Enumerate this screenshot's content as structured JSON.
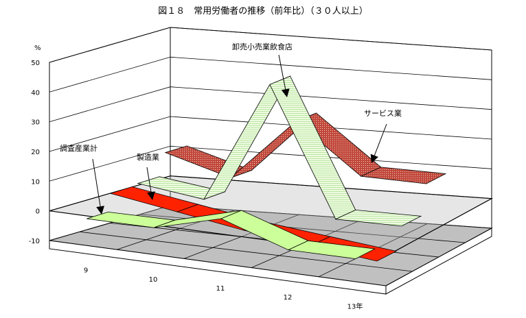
{
  "chart_data": {
    "type": "ribbon-3d",
    "title": "図１８　常用労働者の推移（前年比）（３０人以上）",
    "ylabel": "%",
    "ylim": [
      -10,
      50
    ],
    "yticks": [
      "50",
      "40",
      "30",
      "20",
      "10",
      "0",
      "-10"
    ],
    "categories": [
      "9",
      "10",
      "11",
      "12",
      "13年"
    ],
    "series": [
      {
        "name": "調査産業計",
        "values": [
          -1.5,
          -1.5,
          4.5,
          -3,
          -3
        ],
        "color": "#ccff99"
      },
      {
        "name": "製造業",
        "values": [
          4.5,
          1,
          -2.5,
          -5,
          -7.5
        ],
        "color": "#ff2200"
      },
      {
        "name": "卸売小売業飲食店",
        "values": [
          5,
          2,
          43,
          0,
          0
        ],
        "color": "#e6f7d8"
      },
      {
        "name": "サービス業",
        "values": [
          12.5,
          6,
          27,
          10.5,
          10
        ],
        "color": "#d98a7a"
      }
    ],
    "grid": true
  }
}
